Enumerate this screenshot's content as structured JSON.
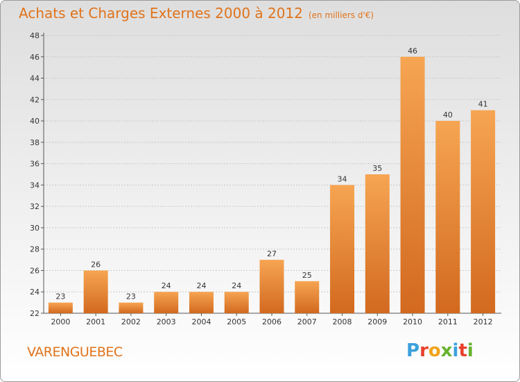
{
  "page": {
    "title": "Achats et Charges Externes 2000 à 2012",
    "subtitle": "(en milliers d'€)",
    "commune": "VARENGUEBEC",
    "logo": {
      "letters": [
        "P",
        "r",
        "o",
        "x",
        "i",
        "t",
        "i"
      ],
      "colors": [
        "#3aa0dc",
        "#e8412c",
        "#f1a31b",
        "#66b32e",
        "#3aa0dc",
        "#e8412c",
        "#66b32e"
      ]
    }
  },
  "colors": {
    "bar_light": "#f6a552",
    "bar_dark": "#d2691f",
    "accent": "#e0731b"
  },
  "chart_data": {
    "type": "bar",
    "title": "Achats et Charges Externes 2000 à 2012",
    "subtitle": "(en milliers d'€)",
    "categories": [
      "2000",
      "2001",
      "2002",
      "2003",
      "2004",
      "2005",
      "2006",
      "2007",
      "2008",
      "2009",
      "2010",
      "2011",
      "2012"
    ],
    "values": [
      23,
      26,
      23,
      24,
      24,
      24,
      27,
      25,
      34,
      35,
      46,
      40,
      41
    ],
    "ylim": [
      22,
      48
    ],
    "yticks": [
      22,
      24,
      26,
      28,
      30,
      32,
      34,
      36,
      38,
      40,
      42,
      44,
      46,
      48
    ],
    "grid": true
  }
}
